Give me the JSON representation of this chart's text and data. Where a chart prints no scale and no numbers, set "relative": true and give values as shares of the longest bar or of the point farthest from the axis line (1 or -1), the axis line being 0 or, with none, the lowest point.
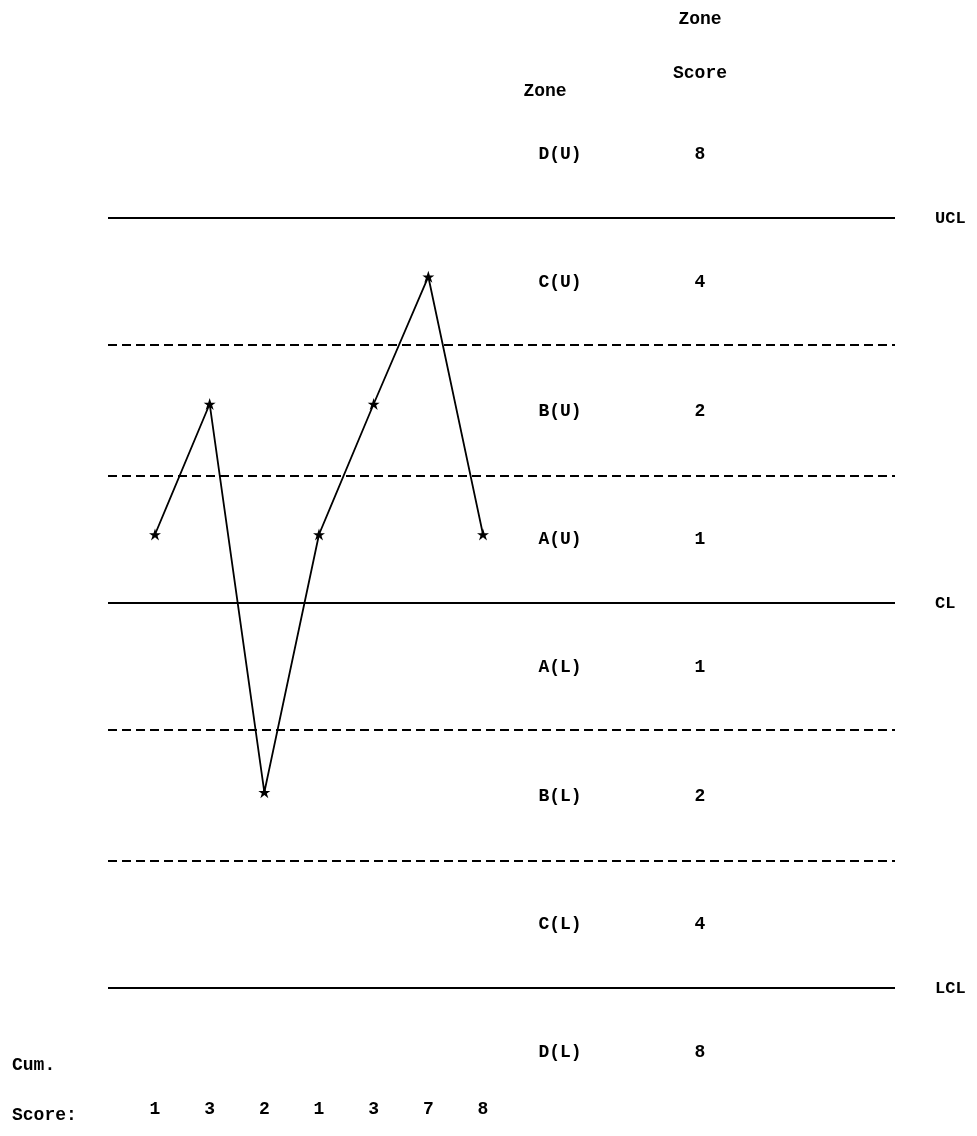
{
  "chart_data": {
    "type": "line",
    "relative": true,
    "xlabel": "Cum. Score:",
    "categories": [
      "1",
      "3",
      "2",
      "1",
      "3",
      "7",
      "8"
    ],
    "values": [
      0.21,
      0.61,
      -0.58,
      0.21,
      0.61,
      1,
      0.21
    ],
    "color": "#000000",
    "marker": "star",
    "ref_lines": [
      {
        "axis": "y",
        "value": 1.18,
        "label": "UCL",
        "line_style": "solid",
        "color": "#000000"
      },
      {
        "axis": "y",
        "value": 0.79,
        "label": null,
        "line_style": "dashed",
        "color": "#000000"
      },
      {
        "axis": "y",
        "value": 0.39,
        "label": null,
        "line_style": "dashed",
        "color": "#000000"
      },
      {
        "axis": "y",
        "value": 0,
        "label": "CL",
        "line_style": "solid",
        "color": "#000000"
      },
      {
        "axis": "y",
        "value": -0.39,
        "label": null,
        "line_style": "dashed",
        "color": "#000000"
      },
      {
        "axis": "y",
        "value": -0.79,
        "label": null,
        "line_style": "dashed",
        "color": "#000000"
      },
      {
        "axis": "y",
        "value": -1.18,
        "label": "LCL",
        "line_style": "solid",
        "color": "#000000"
      }
    ],
    "annotations": [
      "Zone",
      "Zone Score",
      "D(U)",
      "8",
      "C(U)",
      "4",
      "B(U)",
      "2",
      "A(U)",
      "1",
      "A(L)",
      "1",
      "B(L)",
      "2",
      "C(L)",
      "4",
      "D(L)",
      "8"
    ]
  }
}
